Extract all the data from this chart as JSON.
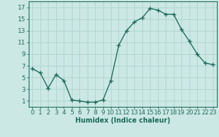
{
  "x": [
    0,
    1,
    2,
    3,
    4,
    5,
    6,
    7,
    8,
    9,
    10,
    11,
    12,
    13,
    14,
    15,
    16,
    17,
    18,
    19,
    20,
    21,
    22,
    23
  ],
  "y": [
    6.5,
    5.8,
    3.2,
    5.5,
    4.5,
    1.2,
    1.0,
    0.8,
    0.8,
    1.2,
    4.5,
    10.5,
    13.0,
    14.5,
    15.2,
    16.8,
    16.5,
    15.8,
    15.8,
    13.2,
    11.2,
    9.0,
    7.5,
    7.2
  ],
  "line_color": "#1a6b5a",
  "marker": "+",
  "bg_color": "#cce8e5",
  "grid_color": "#b0d4d0",
  "xlabel": "Humidex (Indice chaleur)",
  "xlabel_fontsize": 7,
  "xlim": [
    -0.5,
    23.5
  ],
  "ylim": [
    0,
    18
  ],
  "yticks": [
    1,
    3,
    5,
    7,
    9,
    11,
    13,
    15,
    17
  ],
  "xtick_labels": [
    "0",
    "1",
    "2",
    "3",
    "4",
    "5",
    "6",
    "7",
    "8",
    "9",
    "10",
    "11",
    "12",
    "13",
    "14",
    "15",
    "16",
    "17",
    "18",
    "19",
    "20",
    "21",
    "22",
    "23"
  ],
  "tick_fontsize": 6.5
}
